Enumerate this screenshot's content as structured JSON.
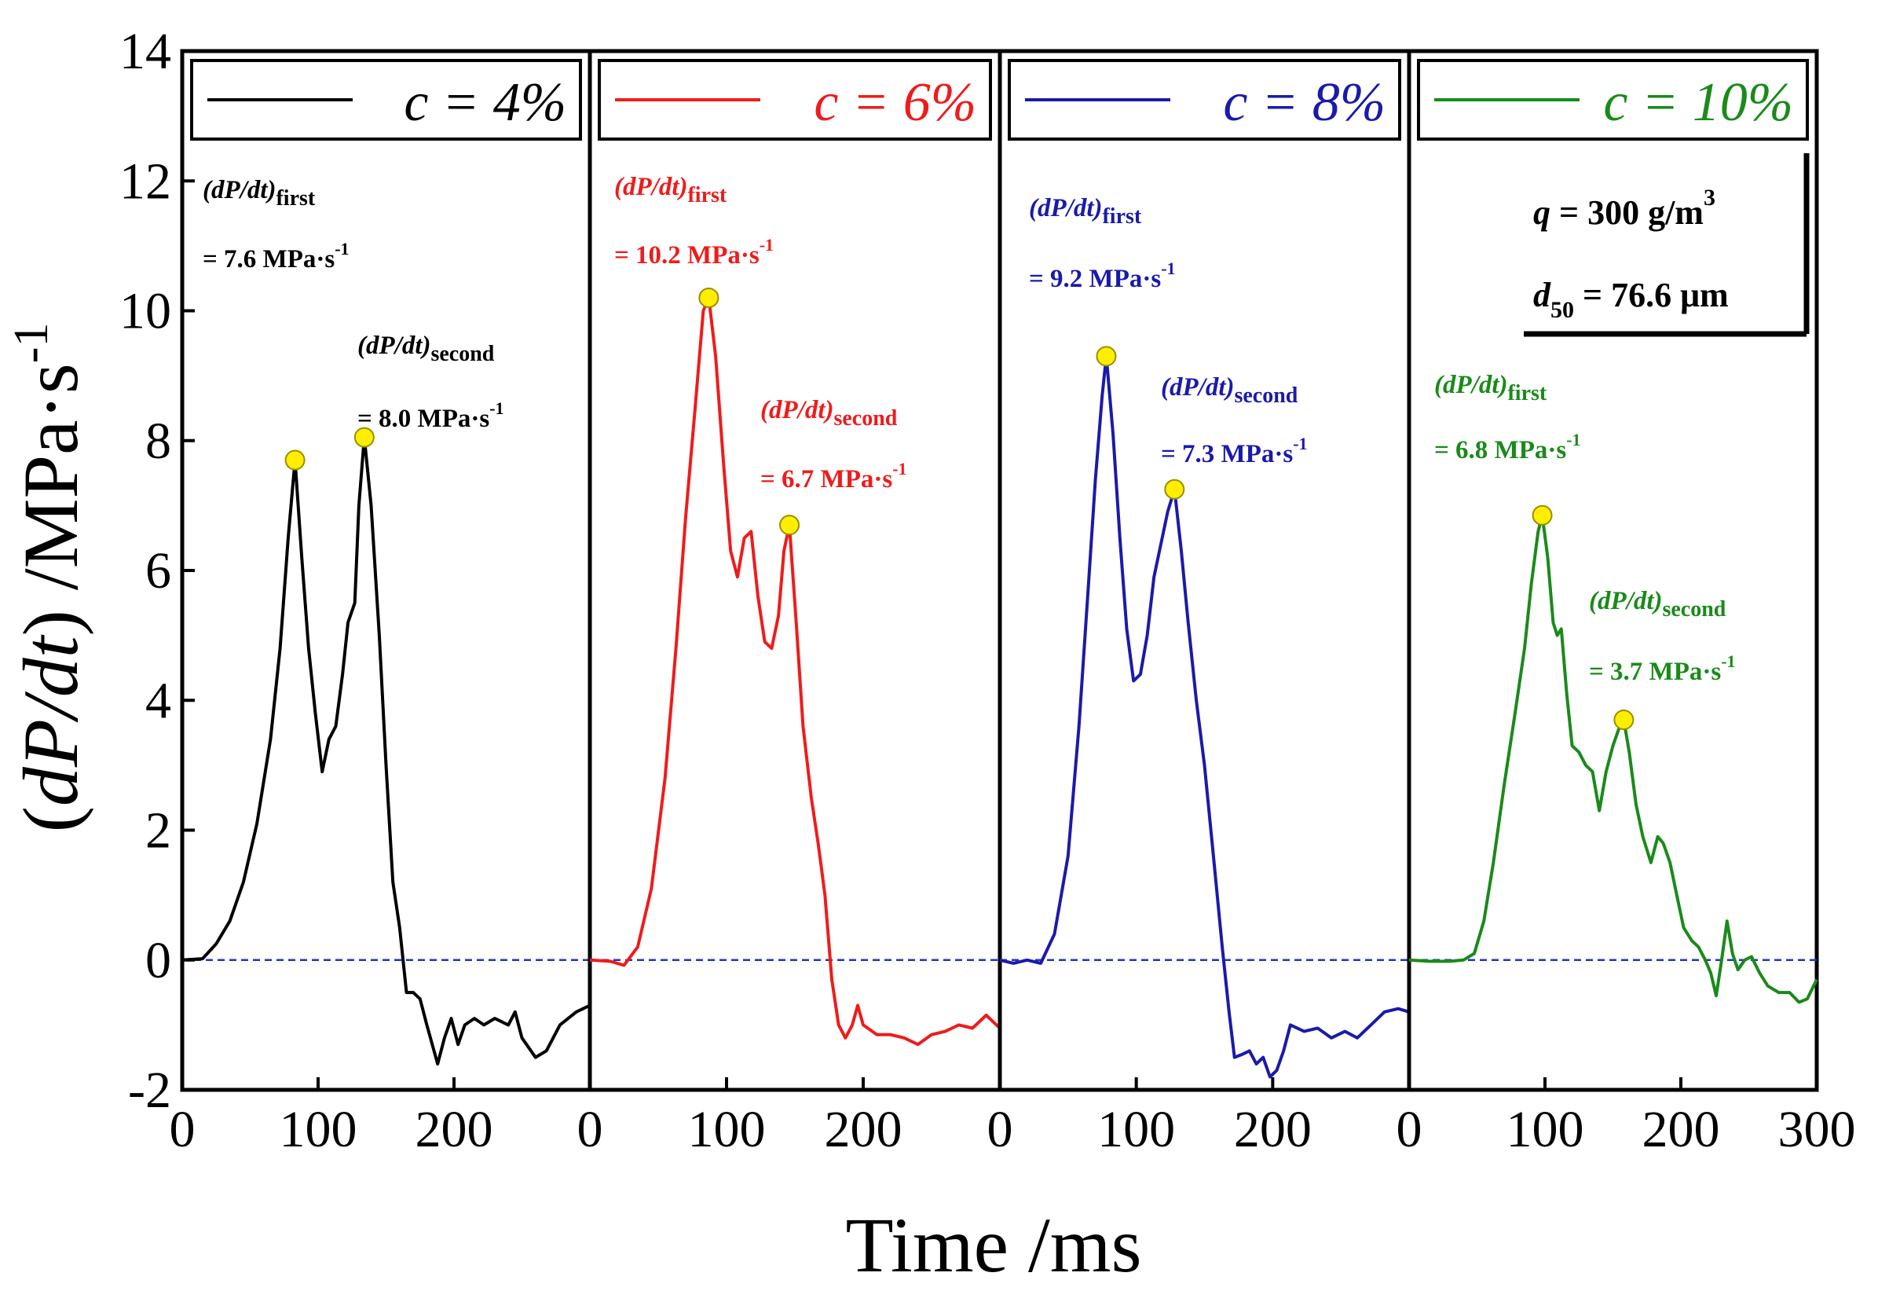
{
  "chart_data": {
    "type": "line",
    "title": "",
    "xlabel": "Time /ms",
    "ylabel": "(dP/dt) /MPa·s-1",
    "ylabel_parts": {
      "open": "(",
      "d": "dP/dt",
      "close": ")",
      "unit": " /MPa·s",
      "sup": "-1"
    },
    "ylim": [
      -2,
      14
    ],
    "yticks": [
      "-2",
      "0",
      "2",
      "4",
      "6",
      "8",
      "10",
      "12",
      "14"
    ],
    "xlim": [
      0,
      300
    ],
    "xticks": [
      "0",
      "100",
      "200"
    ],
    "xticks_last_panel": [
      "0",
      "100",
      "200",
      "300"
    ],
    "baseline": 0,
    "baseline_color": "#1f35c8",
    "marker_color": "#ffee00",
    "info_box": {
      "q_sym": "q",
      "q_value": " = 300 g/m",
      "q_sup": "3",
      "d_sym": "d",
      "d_sub": "50",
      "d_value": " = 76.6 μm"
    },
    "panels": [
      {
        "legend_sym": "c",
        "legend_eq": " = 4%",
        "color": "#000000",
        "first": {
          "label": "(dP/dt)",
          "sub": "first",
          "value": "= 7.6 MPa·s",
          "sup": "-1",
          "peak": [
            83,
            7.7
          ]
        },
        "second": {
          "label": "(dP/dt)",
          "sub": "second",
          "value": "= 8.0 MPa·s",
          "sup": "-1",
          "peak": [
            134,
            8.05
          ]
        },
        "points": [
          [
            0,
            0
          ],
          [
            15,
            0.02
          ],
          [
            25,
            0.25
          ],
          [
            35,
            0.6
          ],
          [
            45,
            1.2
          ],
          [
            55,
            2.1
          ],
          [
            65,
            3.4
          ],
          [
            72,
            4.8
          ],
          [
            78,
            6.5
          ],
          [
            83,
            7.7
          ],
          [
            88,
            6.2
          ],
          [
            93,
            4.8
          ],
          [
            98,
            3.8
          ],
          [
            103,
            2.9
          ],
          [
            108,
            3.4
          ],
          [
            113,
            3.6
          ],
          [
            118,
            4.4
          ],
          [
            122,
            5.2
          ],
          [
            127,
            5.5
          ],
          [
            130,
            7.0
          ],
          [
            134,
            8.05
          ],
          [
            139,
            7.0
          ],
          [
            145,
            5.0
          ],
          [
            150,
            3.0
          ],
          [
            155,
            1.2
          ],
          [
            160,
            0.5
          ],
          [
            165,
            -0.5
          ],
          [
            170,
            -0.5
          ],
          [
            175,
            -0.6
          ],
          [
            180,
            -1.0
          ],
          [
            188,
            -1.6
          ],
          [
            193,
            -1.2
          ],
          [
            198,
            -0.9
          ],
          [
            203,
            -1.3
          ],
          [
            208,
            -1.0
          ],
          [
            215,
            -0.9
          ],
          [
            222,
            -1.0
          ],
          [
            230,
            -0.9
          ],
          [
            240,
            -1.0
          ],
          [
            245,
            -0.8
          ],
          [
            250,
            -1.2
          ],
          [
            260,
            -1.5
          ],
          [
            268,
            -1.4
          ],
          [
            278,
            -1.0
          ],
          [
            290,
            -0.8
          ],
          [
            300,
            -0.7
          ]
        ]
      },
      {
        "legend_sym": "c",
        "legend_eq": " = 6%",
        "color": "#ee1c1c",
        "first": {
          "label": "(dP/dt)",
          "sub": "first",
          "value": "= 10.2 MPa·s",
          "sup": "-1",
          "peak": [
            87,
            10.2
          ]
        },
        "second": {
          "label": "(dP/dt)",
          "sub": "second",
          "value": "= 6.7 MPa·s",
          "sup": "-1",
          "peak": [
            146,
            6.7
          ]
        },
        "points": [
          [
            0,
            0
          ],
          [
            15,
            -0.02
          ],
          [
            25,
            -0.08
          ],
          [
            35,
            0.2
          ],
          [
            45,
            1.1
          ],
          [
            55,
            2.8
          ],
          [
            63,
            4.8
          ],
          [
            70,
            6.8
          ],
          [
            77,
            8.5
          ],
          [
            83,
            10.0
          ],
          [
            87,
            10.2
          ],
          [
            92,
            9.3
          ],
          [
            98,
            7.6
          ],
          [
            103,
            6.3
          ],
          [
            108,
            5.9
          ],
          [
            113,
            6.5
          ],
          [
            118,
            6.6
          ],
          [
            123,
            5.6
          ],
          [
            128,
            4.9
          ],
          [
            133,
            4.8
          ],
          [
            138,
            5.3
          ],
          [
            142,
            6.3
          ],
          [
            146,
            6.7
          ],
          [
            151,
            5.2
          ],
          [
            156,
            3.6
          ],
          [
            162,
            2.5
          ],
          [
            167,
            1.8
          ],
          [
            172,
            1.0
          ],
          [
            177,
            -0.3
          ],
          [
            182,
            -1.0
          ],
          [
            187,
            -1.2
          ],
          [
            192,
            -1.0
          ],
          [
            196,
            -0.7
          ],
          [
            200,
            -1.0
          ],
          [
            210,
            -1.15
          ],
          [
            220,
            -1.15
          ],
          [
            230,
            -1.2
          ],
          [
            240,
            -1.3
          ],
          [
            250,
            -1.15
          ],
          [
            260,
            -1.1
          ],
          [
            270,
            -1.0
          ],
          [
            280,
            -1.05
          ],
          [
            290,
            -0.85
          ],
          [
            300,
            -1.05
          ]
        ]
      },
      {
        "legend_sym": "c",
        "legend_eq": " = 8%",
        "color": "#1a1aaa",
        "first": {
          "label": "(dP/dt)",
          "sub": "first",
          "value": "= 9.2 MPa·s",
          "sup": "-1",
          "peak": [
            78,
            9.3
          ]
        },
        "second": {
          "label": "(dP/dt)",
          "sub": "second",
          "value": "= 7.3 MPa·s",
          "sup": "-1",
          "peak": [
            128,
            7.25
          ]
        },
        "points": [
          [
            0,
            0
          ],
          [
            10,
            -0.05
          ],
          [
            20,
            0
          ],
          [
            30,
            -0.05
          ],
          [
            40,
            0.4
          ],
          [
            50,
            1.6
          ],
          [
            58,
            3.6
          ],
          [
            65,
            5.8
          ],
          [
            70,
            7.4
          ],
          [
            75,
            8.7
          ],
          [
            78,
            9.3
          ],
          [
            83,
            8.1
          ],
          [
            88,
            6.5
          ],
          [
            93,
            5.1
          ],
          [
            98,
            4.3
          ],
          [
            103,
            4.4
          ],
          [
            108,
            5.0
          ],
          [
            113,
            5.9
          ],
          [
            118,
            6.4
          ],
          [
            123,
            6.9
          ],
          [
            128,
            7.25
          ],
          [
            133,
            6.3
          ],
          [
            138,
            5.2
          ],
          [
            144,
            4.0
          ],
          [
            150,
            3.0
          ],
          [
            157,
            1.5
          ],
          [
            163,
            0.2
          ],
          [
            168,
            -0.8
          ],
          [
            172,
            -1.5
          ],
          [
            178,
            -1.45
          ],
          [
            183,
            -1.4
          ],
          [
            188,
            -1.6
          ],
          [
            193,
            -1.5
          ],
          [
            198,
            -1.8
          ],
          [
            203,
            -1.7
          ],
          [
            208,
            -1.4
          ],
          [
            213,
            -1.0
          ],
          [
            223,
            -1.1
          ],
          [
            233,
            -1.05
          ],
          [
            243,
            -1.2
          ],
          [
            253,
            -1.1
          ],
          [
            262,
            -1.2
          ],
          [
            272,
            -1.0
          ],
          [
            282,
            -0.8
          ],
          [
            292,
            -0.75
          ],
          [
            300,
            -0.8
          ]
        ]
      },
      {
        "legend_sym": "c",
        "legend_eq": " = 10%",
        "color": "#1a8a1a",
        "first": {
          "label": "(dP/dt)",
          "sub": "first",
          "value": "= 6.8 MPa·s",
          "sup": "-1",
          "peak": [
            98,
            6.85
          ]
        },
        "second": {
          "label": "(dP/dt)",
          "sub": "second",
          "value": "= 3.7 MPa·s",
          "sup": "-1",
          "peak": [
            158,
            3.7
          ]
        },
        "points": [
          [
            0,
            0
          ],
          [
            15,
            -0.02
          ],
          [
            30,
            -0.02
          ],
          [
            40,
            0
          ],
          [
            48,
            0.1
          ],
          [
            55,
            0.6
          ],
          [
            62,
            1.5
          ],
          [
            70,
            2.7
          ],
          [
            78,
            3.8
          ],
          [
            85,
            4.8
          ],
          [
            90,
            5.8
          ],
          [
            95,
            6.6
          ],
          [
            98,
            6.85
          ],
          [
            102,
            6.2
          ],
          [
            106,
            5.2
          ],
          [
            109,
            5.0
          ],
          [
            112,
            5.1
          ],
          [
            116,
            4.1
          ],
          [
            120,
            3.3
          ],
          [
            125,
            3.2
          ],
          [
            130,
            3.0
          ],
          [
            135,
            2.9
          ],
          [
            140,
            2.3
          ],
          [
            145,
            2.9
          ],
          [
            150,
            3.3
          ],
          [
            155,
            3.6
          ],
          [
            158,
            3.7
          ],
          [
            162,
            3.2
          ],
          [
            167,
            2.4
          ],
          [
            172,
            1.9
          ],
          [
            178,
            1.5
          ],
          [
            183,
            1.9
          ],
          [
            187,
            1.8
          ],
          [
            192,
            1.5
          ],
          [
            197,
            1.0
          ],
          [
            202,
            0.5
          ],
          [
            208,
            0.3
          ],
          [
            213,
            0.2
          ],
          [
            218,
            0.0
          ],
          [
            222,
            -0.2
          ],
          [
            226,
            -0.55
          ],
          [
            230,
            0.0
          ],
          [
            234,
            0.6
          ],
          [
            238,
            0.1
          ],
          [
            242,
            -0.15
          ],
          [
            247,
            0.0
          ],
          [
            252,
            0.05
          ],
          [
            258,
            -0.2
          ],
          [
            264,
            -0.4
          ],
          [
            272,
            -0.5
          ],
          [
            280,
            -0.5
          ],
          [
            287,
            -0.65
          ],
          [
            293,
            -0.6
          ],
          [
            300,
            -0.3
          ]
        ]
      }
    ]
  }
}
